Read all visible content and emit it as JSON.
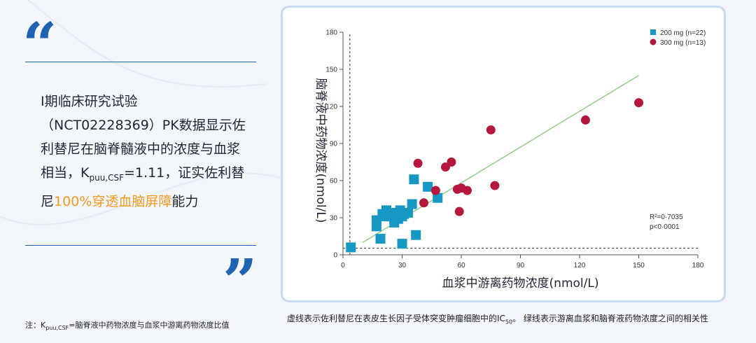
{
  "quotes": {
    "open": "“",
    "close": "”"
  },
  "main_text": {
    "line1": "I期临床研究试验",
    "line2": "（NCT02228369）PK数据显示佐",
    "line3": "利替尼在脑脊髓液中的浓度与血浆",
    "line4_pre": "相当，K",
    "line4_sub": "puu,CSF",
    "line4_post": "=1.11，证实佐利替",
    "line5_pre": "尼",
    "line5_highlight": "100%穿透血脑屏障",
    "line5_post": "能力"
  },
  "note": {
    "pre": "注：K",
    "sub": "puu,CSF",
    "post": "=脑脊液中药物浓度与血浆中游离药物浓度比值"
  },
  "caption": {
    "pre": "虚线表示佐利替尼在表皮生长因子受体突变肿瘤细胞中的IC",
    "sub": "50",
    "post": "。 绿线表示游离血浆和脑脊液药物浓度之间的相关性"
  },
  "colors": {
    "accent_blue": "#1f63b3",
    "highlight_orange": "#f39a1e",
    "series_200": "#1798c4",
    "series_300": "#b5173d",
    "fit_line": "#9ccf8e"
  },
  "chart_data": {
    "type": "scatter",
    "xlabel": "血浆中游离药物浓度(nmol/L)",
    "ylabel": "脑脊液中药物浓度(nmol/L)",
    "xlim": [
      0,
      180
    ],
    "ylim": [
      0,
      180
    ],
    "xticks": [
      0,
      30,
      60,
      90,
      120,
      150,
      180
    ],
    "yticks": [
      0,
      30,
      60,
      90,
      120,
      150,
      180
    ],
    "grid": false,
    "legend_position": "top-right",
    "annotation_r2": "R²=0·7035",
    "annotation_p": "p<0·0001",
    "ic50_dashed": {
      "x": 3.5,
      "y": 5.3
    },
    "fit_line": {
      "x": [
        10,
        150
      ],
      "y": [
        10,
        145
      ]
    },
    "series": [
      {
        "name": "200 mg (n=22)",
        "marker": "square",
        "points": [
          [
            4,
            6
          ],
          [
            17,
            28
          ],
          [
            17,
            23
          ],
          [
            20,
            33
          ],
          [
            19,
            13
          ],
          [
            22,
            36
          ],
          [
            24,
            33
          ],
          [
            26,
            26
          ],
          [
            27,
            34
          ],
          [
            28,
            29
          ],
          [
            29,
            36
          ],
          [
            30,
            31
          ],
          [
            30,
            9
          ],
          [
            31,
            33
          ],
          [
            33,
            34
          ],
          [
            35,
            41
          ],
          [
            36,
            61
          ],
          [
            37,
            16
          ],
          [
            43,
            55
          ],
          [
            48,
            46
          ],
          [
            26,
            30
          ],
          [
            21,
            31
          ]
        ]
      },
      {
        "name": "300 mg (n=13)",
        "marker": "circle",
        "points": [
          [
            38,
            74
          ],
          [
            41,
            42
          ],
          [
            47,
            52
          ],
          [
            52,
            71
          ],
          [
            55,
            75
          ],
          [
            58,
            53
          ],
          [
            59,
            35
          ],
          [
            60,
            54
          ],
          [
            63,
            52
          ],
          [
            75,
            101
          ],
          [
            77,
            56
          ],
          [
            123,
            109
          ],
          [
            150,
            123
          ]
        ]
      }
    ]
  }
}
